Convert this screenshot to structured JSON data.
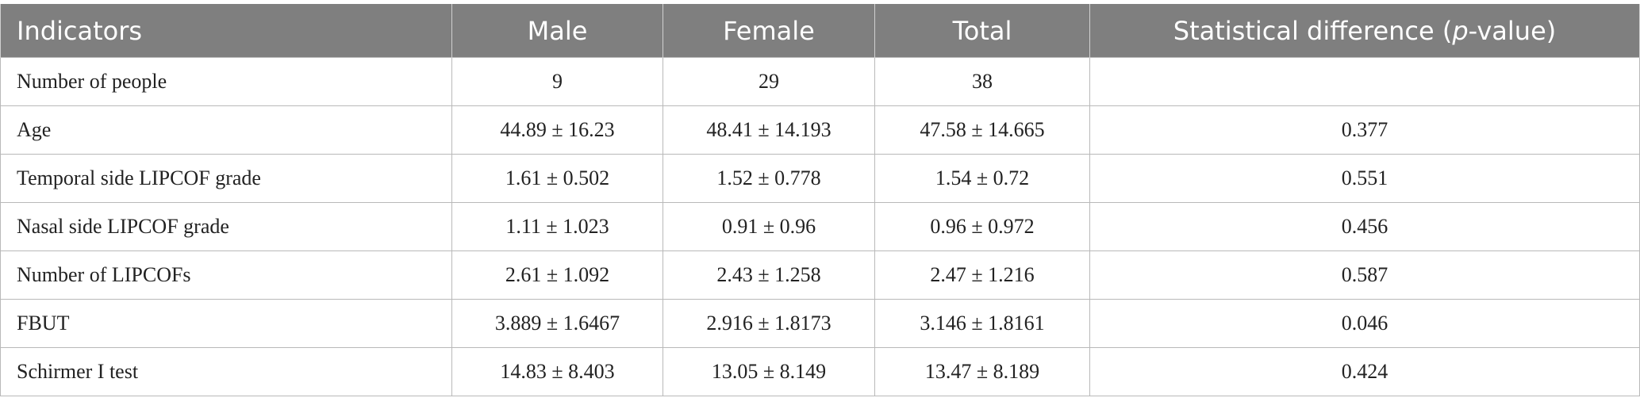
{
  "table": {
    "headers": [
      "Indicators",
      "Male",
      "Female",
      "Total"
    ],
    "last_header": {
      "prefix": "Statistical difference (",
      "italic": "p",
      "suffix": "-value)"
    },
    "rows": [
      [
        "Number of people",
        "9",
        "29",
        "38",
        ""
      ],
      [
        "Age",
        "44.89 ± 16.23",
        "48.41 ± 14.193",
        "47.58 ± 14.665",
        "0.377"
      ],
      [
        "Temporal side LIPCOF grade",
        "1.61 ± 0.502",
        "1.52 ± 0.778",
        "1.54 ± 0.72",
        "0.551"
      ],
      [
        "Nasal side LIPCOF grade",
        "1.11 ± 1.023",
        "0.91 ± 0.96",
        "0.96 ± 0.972",
        "0.456"
      ],
      [
        "Number of LIPCOFs",
        "2.61 ± 1.092",
        "2.43 ± 1.258",
        "2.47 ± 1.216",
        "0.587"
      ],
      [
        "FBUT",
        "3.889 ± 1.6467",
        "2.916 ± 1.8173",
        "3.146 ± 1.8161",
        "0.046"
      ],
      [
        "Schirmer I test",
        "14.83 ± 8.403",
        "13.05 ± 8.149",
        "13.47 ± 8.189",
        "0.424"
      ]
    ]
  }
}
